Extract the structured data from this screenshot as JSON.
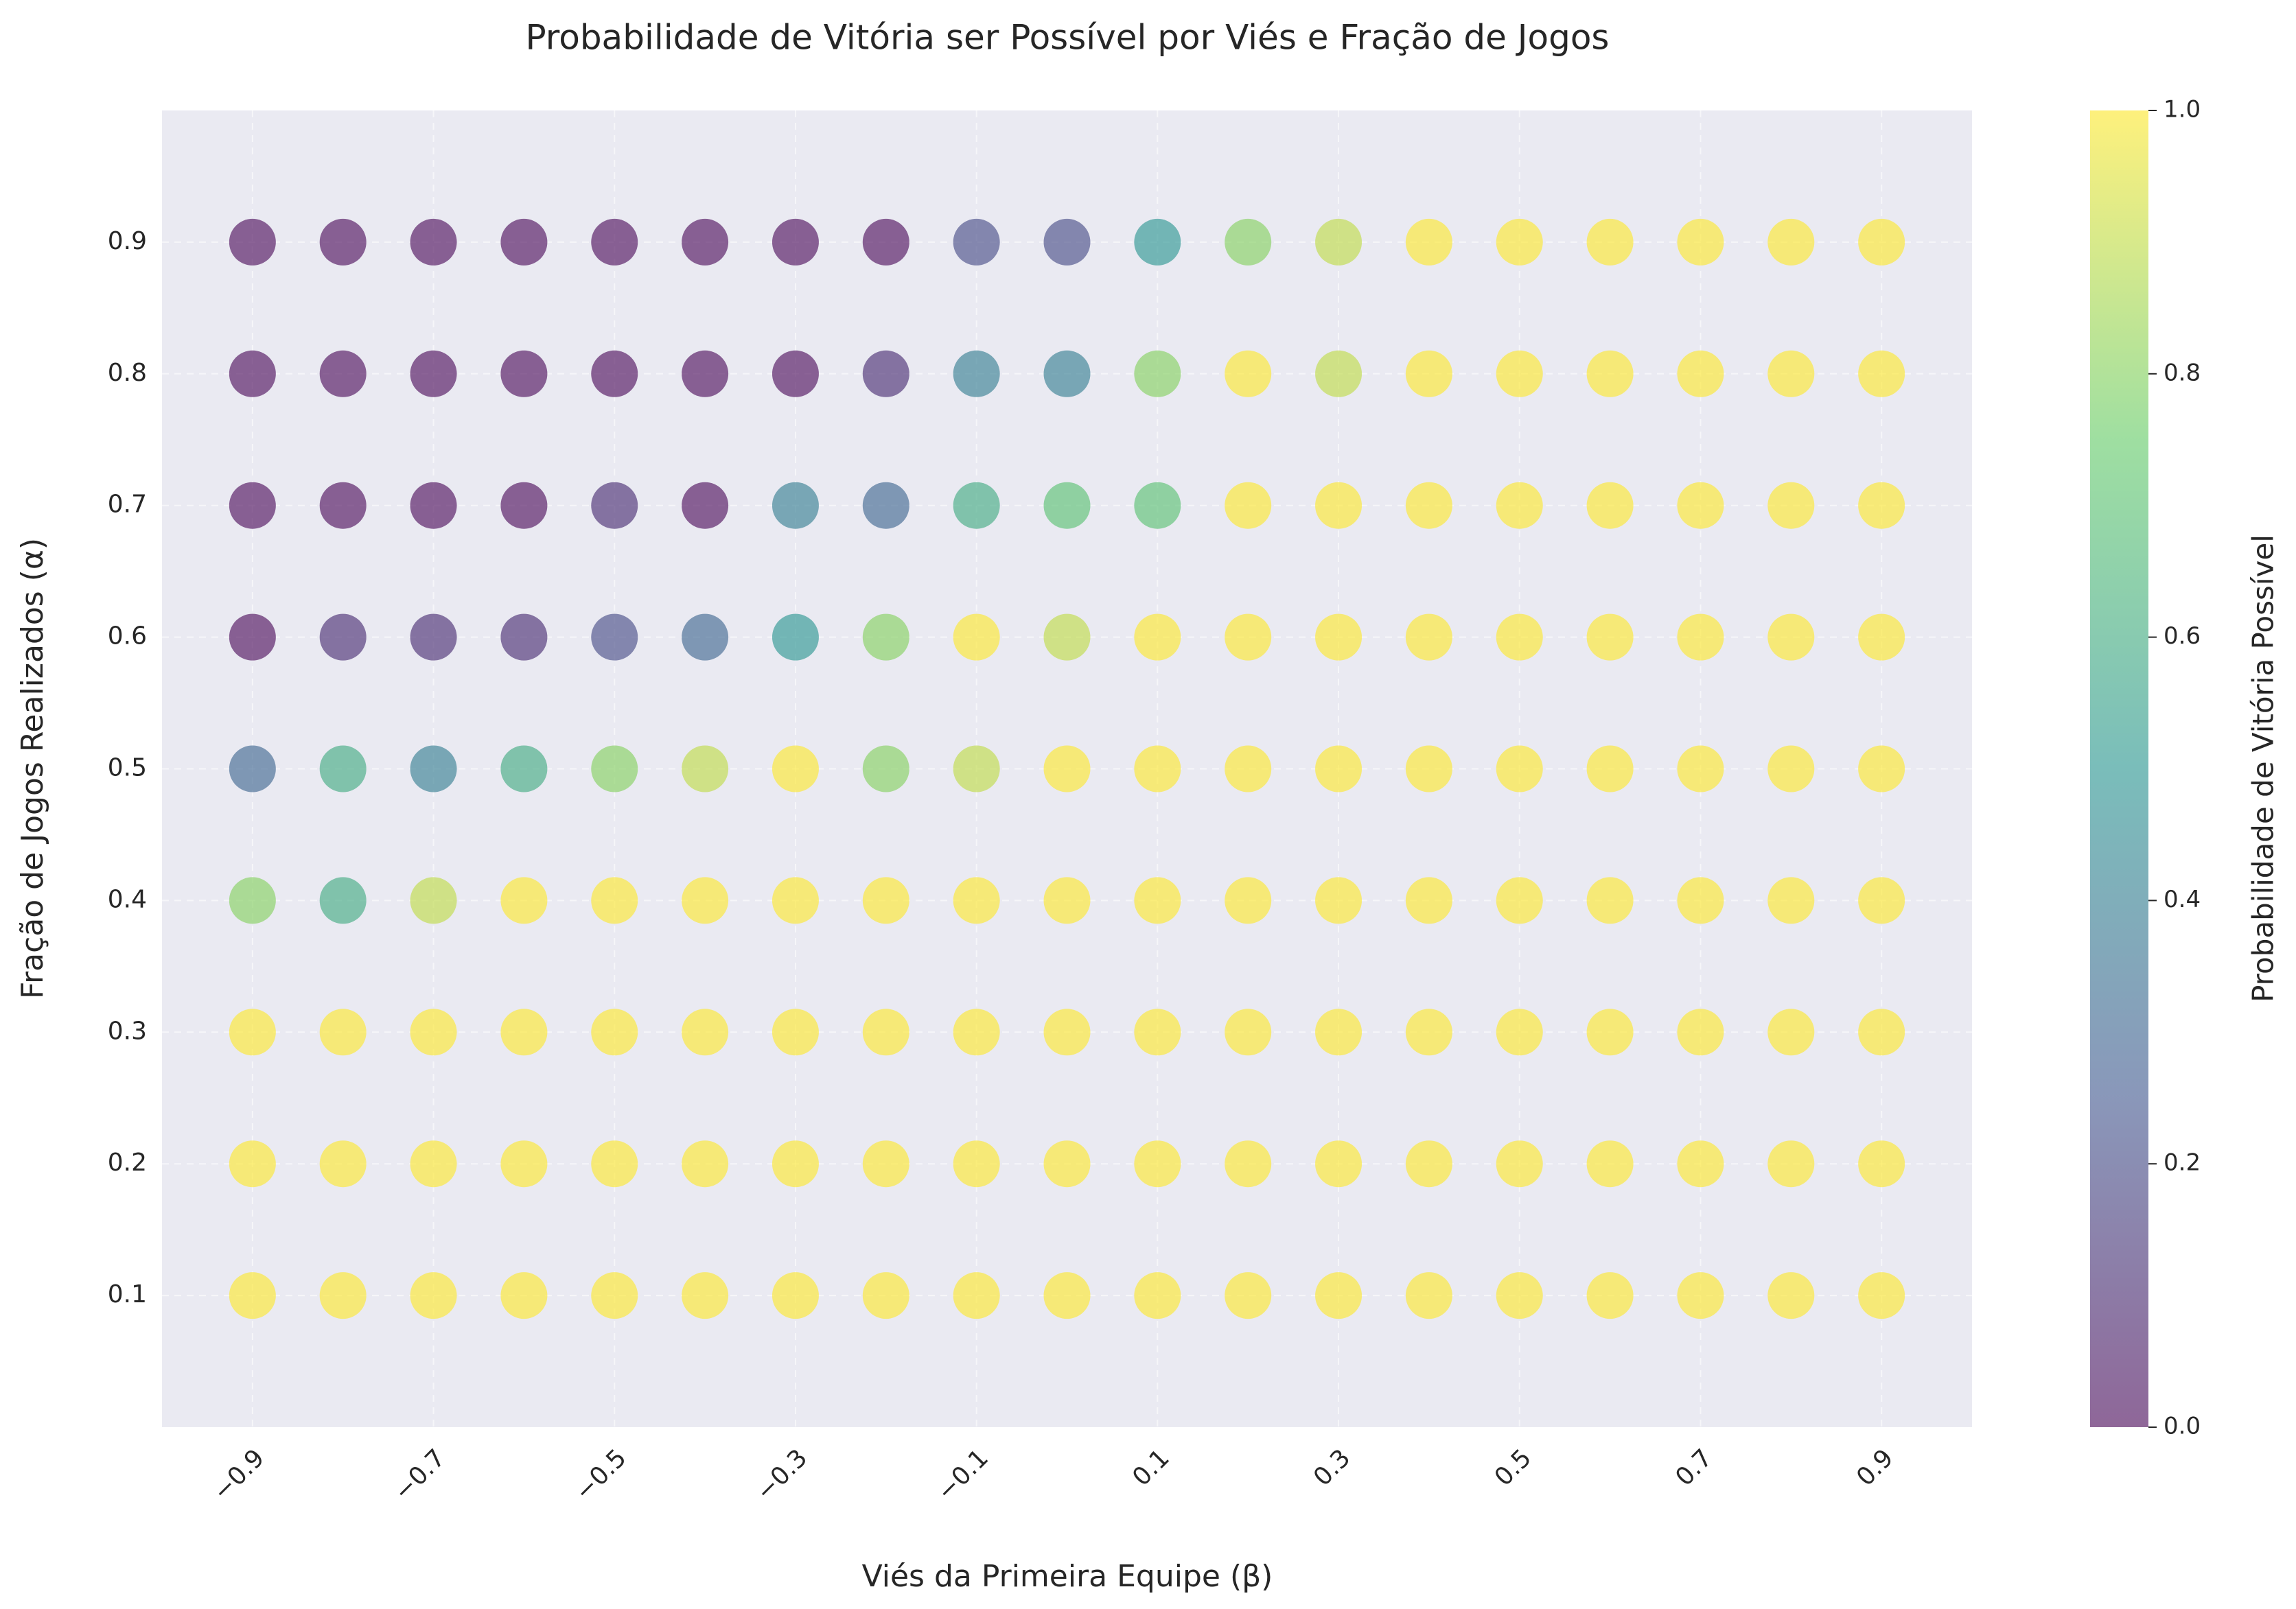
{
  "chart_data": {
    "type": "scatter",
    "title": "Probabilidade de Vitória ser Possível por Viés e Fração de Jogos",
    "x_label": "Viés da Primeira Equipe (β)",
    "y_label": "Fração de Jogos Realizados (α)",
    "colorbar_label": "Probabilidade de Vitória Possível",
    "colormap": "viridis",
    "grid": true,
    "xlim": [
      -1.0,
      1.0
    ],
    "ylim": [
      0.0,
      1.0
    ],
    "clim": [
      0.0,
      1.0
    ],
    "xticks": [
      {
        "value": -0.9,
        "label": "−0.9"
      },
      {
        "value": -0.7,
        "label": "−0.7"
      },
      {
        "value": -0.5,
        "label": "−0.5"
      },
      {
        "value": -0.3,
        "label": "−0.3"
      },
      {
        "value": -0.1,
        "label": "−0.1"
      },
      0.1,
      0.3,
      0.5,
      0.7,
      0.9
    ],
    "yticks": [
      0.1,
      0.2,
      0.3,
      0.4,
      0.5,
      0.6,
      0.7,
      0.8,
      0.9
    ],
    "cticks": [
      {
        "value": 0,
        "label": "0.0"
      },
      0.2,
      0.4,
      0.6,
      0.8,
      {
        "value": 1,
        "label": "1.0"
      }
    ],
    "x": [
      -0.9,
      -0.8,
      -0.7,
      -0.6,
      -0.5,
      -0.4,
      -0.3,
      -0.2,
      -0.1,
      0.0,
      0.1,
      0.2,
      0.3,
      0.4,
      0.5,
      0.6,
      0.7,
      0.8,
      0.9,
      -0.9,
      -0.8,
      -0.7,
      -0.6,
      -0.5,
      -0.4,
      -0.3,
      -0.2,
      -0.1,
      0.0,
      0.1,
      0.2,
      0.3,
      0.4,
      0.5,
      0.6,
      0.7,
      0.8,
      0.9,
      -0.9,
      -0.8,
      -0.7,
      -0.6,
      -0.5,
      -0.4,
      -0.3,
      -0.2,
      -0.1,
      0.0,
      0.1,
      0.2,
      0.3,
      0.4,
      0.5,
      0.6,
      0.7,
      0.8,
      0.9,
      -0.9,
      -0.8,
      -0.7,
      -0.6,
      -0.5,
      -0.4,
      -0.3,
      -0.2,
      -0.1,
      0.0,
      0.1,
      0.2,
      0.3,
      0.4,
      0.5,
      0.6,
      0.7,
      0.8,
      0.9,
      -0.9,
      -0.8,
      -0.7,
      -0.6,
      -0.5,
      -0.4,
      -0.3,
      -0.2,
      -0.1,
      0.0,
      0.1,
      0.2,
      0.3,
      0.4,
      0.5,
      0.6,
      0.7,
      0.8,
      0.9,
      -0.9,
      -0.8,
      -0.7,
      -0.6,
      -0.5,
      -0.4,
      -0.3,
      -0.2,
      -0.1,
      0.0,
      0.1,
      0.2,
      0.3,
      0.4,
      0.5,
      0.6,
      0.7,
      0.8,
      0.9,
      -0.9,
      -0.8,
      -0.7,
      -0.6,
      -0.5,
      -0.4,
      -0.3,
      -0.2,
      -0.1,
      0.0,
      0.1,
      0.2,
      0.3,
      0.4,
      0.5,
      0.6,
      0.7,
      0.8,
      0.9,
      -0.9,
      -0.8,
      -0.7,
      -0.6,
      -0.5,
      -0.4,
      -0.3,
      -0.2,
      -0.1,
      0.0,
      0.1,
      0.2,
      0.3,
      0.4,
      0.5,
      0.6,
      0.7,
      0.8,
      0.9,
      -0.9,
      -0.8,
      -0.7,
      -0.6,
      -0.5,
      -0.4,
      -0.3,
      -0.2,
      -0.1,
      0.0,
      0.1,
      0.2,
      0.3,
      0.4,
      0.5,
      0.6,
      0.7,
      0.8,
      0.9
    ],
    "y": [
      0.9,
      0.9,
      0.9,
      0.9,
      0.9,
      0.9,
      0.9,
      0.9,
      0.9,
      0.9,
      0.9,
      0.9,
      0.9,
      0.9,
      0.9,
      0.9,
      0.9,
      0.9,
      0.9,
      0.8,
      0.8,
      0.8,
      0.8,
      0.8,
      0.8,
      0.8,
      0.8,
      0.8,
      0.8,
      0.8,
      0.8,
      0.8,
      0.8,
      0.8,
      0.8,
      0.8,
      0.8,
      0.8,
      0.7,
      0.7,
      0.7,
      0.7,
      0.7,
      0.7,
      0.7,
      0.7,
      0.7,
      0.7,
      0.7,
      0.7,
      0.7,
      0.7,
      0.7,
      0.7,
      0.7,
      0.7,
      0.7,
      0.6,
      0.6,
      0.6,
      0.6,
      0.6,
      0.6,
      0.6,
      0.6,
      0.6,
      0.6,
      0.6,
      0.6,
      0.6,
      0.6,
      0.6,
      0.6,
      0.6,
      0.6,
      0.6,
      0.5,
      0.5,
      0.5,
      0.5,
      0.5,
      0.5,
      0.5,
      0.5,
      0.5,
      0.5,
      0.5,
      0.5,
      0.5,
      0.5,
      0.5,
      0.5,
      0.5,
      0.5,
      0.5,
      0.4,
      0.4,
      0.4,
      0.4,
      0.4,
      0.4,
      0.4,
      0.4,
      0.4,
      0.4,
      0.4,
      0.4,
      0.4,
      0.4,
      0.4,
      0.4,
      0.4,
      0.4,
      0.4,
      0.3,
      0.3,
      0.3,
      0.3,
      0.3,
      0.3,
      0.3,
      0.3,
      0.3,
      0.3,
      0.3,
      0.3,
      0.3,
      0.3,
      0.3,
      0.3,
      0.3,
      0.3,
      0.3,
      0.2,
      0.2,
      0.2,
      0.2,
      0.2,
      0.2,
      0.2,
      0.2,
      0.2,
      0.2,
      0.2,
      0.2,
      0.2,
      0.2,
      0.2,
      0.2,
      0.2,
      0.2,
      0.2,
      0.1,
      0.1,
      0.1,
      0.1,
      0.1,
      0.1,
      0.1,
      0.1,
      0.1,
      0.1,
      0.1,
      0.1,
      0.1,
      0.1,
      0.1,
      0.1,
      0.1,
      0.1,
      0.1
    ],
    "values": [
      0,
      0,
      0,
      0,
      0,
      0,
      0,
      0,
      0.2,
      0.2,
      0.5,
      0.8,
      0.9,
      1,
      1,
      1,
      1,
      1,
      1,
      0,
      0,
      0,
      0,
      0,
      0,
      0,
      0.1,
      0.4,
      0.4,
      0.8,
      1,
      0.9,
      1,
      1,
      1,
      1,
      1,
      1,
      0,
      0,
      0,
      0,
      0.1,
      0,
      0.4,
      0.3,
      0.6,
      0.7,
      0.7,
      1,
      1,
      1,
      1,
      1,
      1,
      1,
      1,
      0,
      0.1,
      0.1,
      0.1,
      0.2,
      0.3,
      0.5,
      0.8,
      1,
      0.9,
      1,
      1,
      1,
      1,
      1,
      1,
      1,
      1,
      1,
      0.3,
      0.6,
      0.4,
      0.6,
      0.8,
      0.9,
      1,
      0.8,
      0.9,
      1,
      1,
      1,
      1,
      1,
      1,
      1,
      1,
      1,
      1,
      0.8,
      0.6,
      0.9,
      1,
      1,
      1,
      1,
      1,
      1,
      1,
      1,
      1,
      1,
      1,
      1,
      1,
      1,
      1,
      1,
      1,
      1,
      1,
      1,
      1,
      1,
      1,
      1,
      1,
      1,
      1,
      1,
      1,
      1,
      1,
      1,
      1,
      1,
      1,
      1,
      1,
      1,
      1,
      1,
      1,
      1,
      1,
      1,
      1,
      1,
      1,
      1,
      1,
      1,
      1,
      1,
      1,
      1,
      1,
      1,
      1,
      1,
      1,
      1,
      1,
      1,
      1,
      1,
      1,
      1,
      1,
      1,
      1,
      1,
      1,
      1,
      1
    ]
  }
}
